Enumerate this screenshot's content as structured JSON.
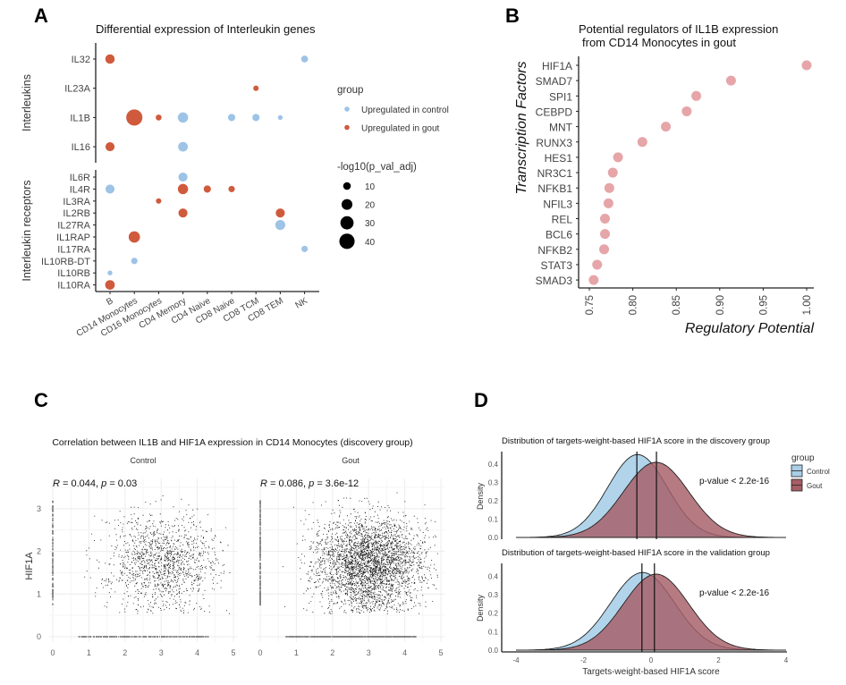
{
  "panels": {
    "A": "A",
    "B": "B",
    "C": "C",
    "D": "D"
  },
  "watermark": "知乎 @概普生信",
  "colors": {
    "control": "#9dc3e6",
    "gout": "#d05a3c",
    "tf_dot": "#e6a5a8",
    "density_control": "#a9cfe8",
    "density_gout": "#a65e66"
  },
  "chart_data": [
    {
      "type": "scatter",
      "id": "A",
      "title": "Differential expression of Interleukin genes",
      "categories": [
        "B",
        "CD14 Monocytes",
        "CD16 Monocytes",
        "CD4 Memory",
        "CD4 Naive",
        "CD8 Naive",
        "CD8 TCM",
        "CD8 TEM",
        "NK"
      ],
      "facets": [
        {
          "label": "Interleukins",
          "genes": [
            "IL32",
            "IL23A",
            "IL1B",
            "IL16"
          ]
        },
        {
          "label": "Interleukin receptors",
          "genes": [
            "IL6R",
            "IL4R",
            "IL3RA",
            "IL2RB",
            "IL27RA",
            "IL1RAP",
            "IL17RA",
            "IL10RB-DT",
            "IL10RB",
            "IL10RA"
          ]
        }
      ],
      "points": [
        {
          "gene": "IL32",
          "cell": "B",
          "group": "gout",
          "neglog10p": 15
        },
        {
          "gene": "IL32",
          "cell": "NK",
          "group": "control",
          "neglog10p": 8
        },
        {
          "gene": "IL23A",
          "cell": "CD8 TCM",
          "group": "gout",
          "neglog10p": 5
        },
        {
          "gene": "IL1B",
          "cell": "CD14 Monocytes",
          "group": "gout",
          "neglog10p": 45
        },
        {
          "gene": "IL1B",
          "cell": "CD16 Monocytes",
          "group": "gout",
          "neglog10p": 6
        },
        {
          "gene": "IL1B",
          "cell": "CD4 Memory",
          "group": "control",
          "neglog10p": 18
        },
        {
          "gene": "IL1B",
          "cell": "CD8 Naive",
          "group": "control",
          "neglog10p": 9
        },
        {
          "gene": "IL1B",
          "cell": "CD8 TCM",
          "group": "control",
          "neglog10p": 9
        },
        {
          "gene": "IL1B",
          "cell": "CD8 TEM",
          "group": "control",
          "neglog10p": 4
        },
        {
          "gene": "IL16",
          "cell": "B",
          "group": "gout",
          "neglog10p": 14
        },
        {
          "gene": "IL16",
          "cell": "CD4 Memory",
          "group": "control",
          "neglog10p": 16
        },
        {
          "gene": "IL6R",
          "cell": "CD4 Memory",
          "group": "control",
          "neglog10p": 14
        },
        {
          "gene": "IL4R",
          "cell": "B",
          "group": "control",
          "neglog10p": 14
        },
        {
          "gene": "IL4R",
          "cell": "CD4 Memory",
          "group": "gout",
          "neglog10p": 18
        },
        {
          "gene": "IL4R",
          "cell": "CD4 Naive",
          "group": "gout",
          "neglog10p": 9
        },
        {
          "gene": "IL4R",
          "cell": "CD8 Naive",
          "group": "gout",
          "neglog10p": 7
        },
        {
          "gene": "IL3RA",
          "cell": "CD16 Monocytes",
          "group": "gout",
          "neglog10p": 5
        },
        {
          "gene": "IL2RB",
          "cell": "CD4 Memory",
          "group": "gout",
          "neglog10p": 14
        },
        {
          "gene": "IL2RB",
          "cell": "CD8 TEM",
          "group": "gout",
          "neglog10p": 14
        },
        {
          "gene": "IL27RA",
          "cell": "CD8 TEM",
          "group": "control",
          "neglog10p": 17
        },
        {
          "gene": "IL1RAP",
          "cell": "CD14 Monocytes",
          "group": "gout",
          "neglog10p": 22
        },
        {
          "gene": "IL17RA",
          "cell": "NK",
          "group": "control",
          "neglog10p": 7
        },
        {
          "gene": "IL10RB-DT",
          "cell": "CD14 Monocytes",
          "group": "control",
          "neglog10p": 7
        },
        {
          "gene": "IL10RB",
          "cell": "B",
          "group": "control",
          "neglog10p": 4
        },
        {
          "gene": "IL10RA",
          "cell": "B",
          "group": "gout",
          "neglog10p": 16
        }
      ],
      "legend": {
        "group_title": "group",
        "groups": [
          {
            "key": "control",
            "label": "Upregulated in control"
          },
          {
            "key": "gout",
            "label": "Upregulated in gout"
          }
        ],
        "size_title": "-log10(p_val_adj)",
        "sizes": [
          10,
          20,
          30,
          40
        ],
        "placement": "right"
      }
    },
    {
      "type": "scatter",
      "id": "B",
      "title_lines": [
        "Potential regulators of IL1B expression",
        "from CD14 Monocytes in gout"
      ],
      "xlabel": "Regulatory Potential",
      "ylabel": "Transcription Factors",
      "xlim": [
        0.75,
        1.0
      ],
      "xticks": [
        "0.75",
        "0.80",
        "0.85",
        "0.90",
        "0.95",
        "1.00"
      ],
      "categories": [
        "HIF1A",
        "SMAD7",
        "SPI1",
        "CEBPD",
        "MNT",
        "RUNX3",
        "HES1",
        "NR3C1",
        "NFKB1",
        "NFIL3",
        "REL",
        "BCL6",
        "NFKB2",
        "STAT3",
        "SMAD3"
      ],
      "values": [
        1.0,
        0.913,
        0.873,
        0.862,
        0.838,
        0.811,
        0.783,
        0.777,
        0.773,
        0.772,
        0.768,
        0.768,
        0.767,
        0.759,
        0.755
      ]
    },
    {
      "type": "scatter",
      "id": "C",
      "title": "Correlation between IL1B and HIF1A expression in CD14 Monocytes (discovery group)",
      "ylabel": "HIF1A",
      "xlim": [
        0,
        5
      ],
      "ylim": [
        0,
        3.6
      ],
      "xticks": [
        "0",
        "1",
        "2",
        "3",
        "4",
        "5"
      ],
      "yticks": [
        "0",
        "1",
        "2",
        "3"
      ],
      "grid": true,
      "facets": [
        {
          "label": "Control",
          "R": "0.044",
          "p": "0.03",
          "density": "lower"
        },
        {
          "label": "Gout",
          "R": "0.086",
          "p": "3.6e-12",
          "density": "higher"
        }
      ]
    },
    {
      "type": "area",
      "id": "D",
      "xlabel": "Targets-weight-based HIF1A score",
      "ylabel": "Density",
      "xlim": [
        -4,
        4
      ],
      "ylim": [
        0,
        0.45
      ],
      "xticks": [
        "-4",
        "-2",
        "0",
        "2",
        "4"
      ],
      "yticks": [
        "0.0",
        "0.1",
        "0.2",
        "0.3",
        "0.4"
      ],
      "legend": {
        "title": "group",
        "entries": [
          "Control",
          "Gout"
        ],
        "placement": "right"
      },
      "subplots": [
        {
          "title": "Distribution of targets-weight-based HIF1A score in the discovery group",
          "pvalue": "p-value < 2.2e-16",
          "series": [
            {
              "name": "Control",
              "mean": -0.4,
              "sd": 0.88,
              "median_line": -0.42
            },
            {
              "name": "Gout",
              "mean": 0.15,
              "sd": 0.97,
              "median_line": 0.16
            }
          ]
        },
        {
          "title": "Distribution of targets-weight-based HIF1A score in the validation group",
          "pvalue": "p-value < 2.2e-16",
          "series": [
            {
              "name": "Control",
              "mean": -0.25,
              "sd": 0.95,
              "median_line": -0.27
            },
            {
              "name": "Gout",
              "mean": 0.15,
              "sd": 0.97,
              "median_line": 0.1
            }
          ]
        }
      ]
    }
  ]
}
